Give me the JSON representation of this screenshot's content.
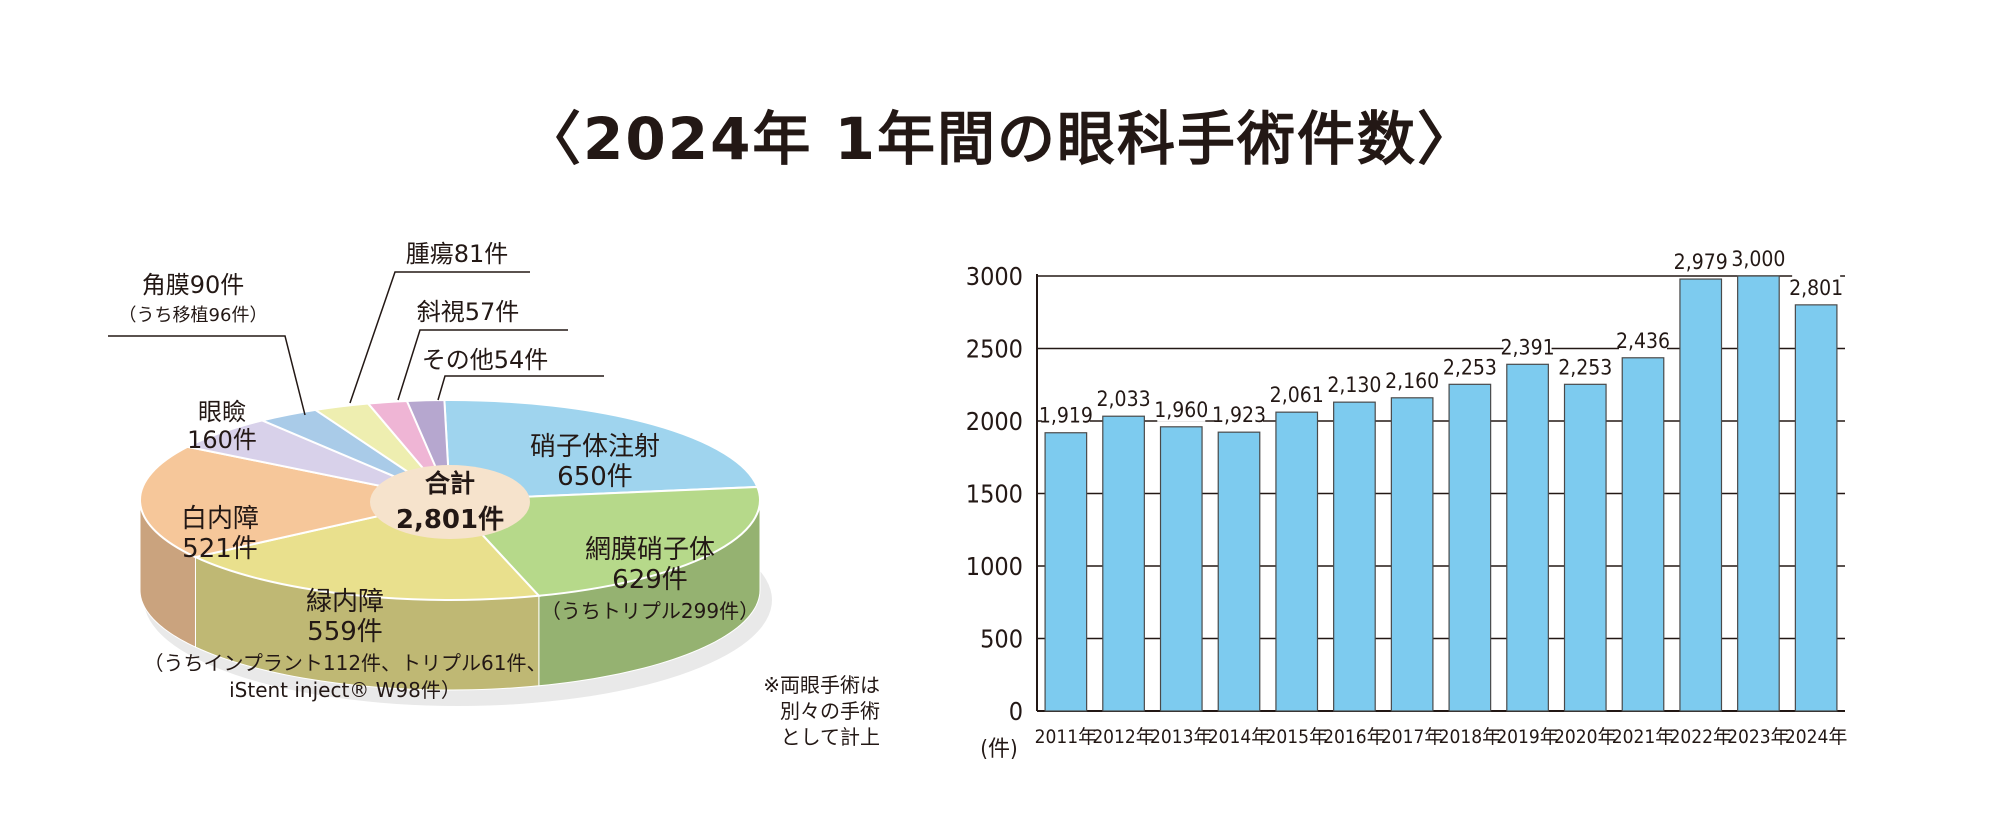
{
  "title": "〈2024年 1年間の眼科手術件数〉",
  "note": [
    "※両眼手術は",
    "別々の手術",
    "として計上"
  ],
  "colors": {
    "bar": "#7dcbef",
    "vitreous_injection": "#9fd4ee",
    "retina_vitreous": "#b6d98a",
    "glaucoma": "#e9e08d",
    "cataract": "#f6c79a",
    "eyelid": "#d8d1ea",
    "cornea": "#a9cbe8",
    "tumor": "#eeeeb0",
    "strabismus": "#efb5d5",
    "other": "#b6a7cf",
    "center": "#f6e3cc"
  },
  "chart_data": [
    {
      "type": "pie",
      "total_label": "合計",
      "total_value": "2,801件",
      "slices": [
        {
          "key": "vitreous_injection",
          "lines": [
            "硝子体注射",
            "650件"
          ],
          "value": 650
        },
        {
          "key": "retina_vitreous",
          "lines": [
            "網膜硝子体",
            "629件",
            "（うちトリプル299件）"
          ],
          "value": 629
        },
        {
          "key": "glaucoma",
          "lines": [
            "緑内障",
            "559件",
            "（うちインプラント112件、トリプル61件、",
            "iStent inject® W98件）"
          ],
          "value": 559
        },
        {
          "key": "cataract",
          "lines": [
            "白内障",
            "521件"
          ],
          "value": 521
        },
        {
          "key": "eyelid",
          "lines": [
            "眼瞼",
            "160件"
          ],
          "value": 160
        },
        {
          "key": "cornea",
          "lines": [
            "角膜90件",
            "（うち移植96件）"
          ],
          "value": 90
        },
        {
          "key": "tumor",
          "lines": [
            "腫瘍81件"
          ],
          "value": 81
        },
        {
          "key": "strabismus",
          "lines": [
            "斜視57件"
          ],
          "value": 57
        },
        {
          "key": "other",
          "lines": [
            "その他54件"
          ],
          "value": 54
        }
      ]
    },
    {
      "type": "bar",
      "categories": [
        "2011年",
        "2012年",
        "2013年",
        "2014年",
        "2015年",
        "2016年",
        "2017年",
        "2018年",
        "2019年",
        "2020年",
        "2021年",
        "2022年",
        "2023年",
        "2024年"
      ],
      "values": [
        1919,
        2033,
        1960,
        1923,
        2061,
        2130,
        2160,
        2253,
        2391,
        2253,
        2436,
        2979,
        3000,
        2801
      ],
      "value_labels": [
        "1,919",
        "2,033",
        "1,960",
        "1,923",
        "2,061",
        "2,130",
        "2,160",
        "2,253",
        "2,391",
        "2,253",
        "2,436",
        "2,979",
        "3,000",
        "2,801"
      ],
      "yticks": [
        "0",
        "500",
        "1000",
        "1500",
        "2000",
        "2500",
        "3000"
      ],
      "ylim": [
        0,
        3000
      ],
      "ylabel": "(件)",
      "grid": true
    }
  ]
}
